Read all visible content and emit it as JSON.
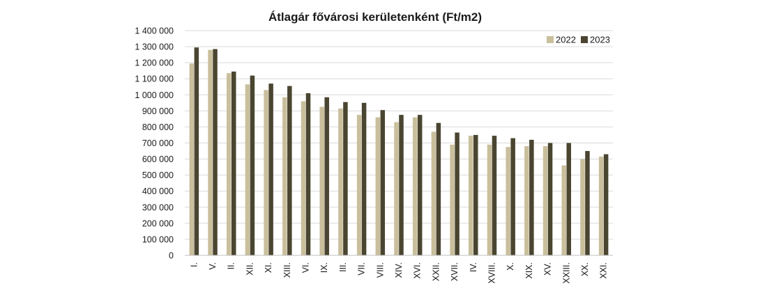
{
  "chart_data": {
    "type": "bar",
    "title": "Átlagár fővárosi kerületenként (Ft/m2)",
    "xlabel": "",
    "ylabel": "",
    "ylim": [
      0,
      1400000
    ],
    "yticks": [
      "0",
      "100 000",
      "200 000",
      "300 000",
      "400 000",
      "500 000",
      "600 000",
      "700 000",
      "800 000",
      "900 000",
      "1 000 000",
      "1 100 000",
      "1 200 000",
      "1 300 000",
      "1 400 000"
    ],
    "ytick_values": [
      0,
      100000,
      200000,
      300000,
      400000,
      500000,
      600000,
      700000,
      800000,
      900000,
      1000000,
      1100000,
      1200000,
      1300000,
      1400000
    ],
    "grid": true,
    "legend_position": "top-right",
    "categories": [
      "I.",
      "V.",
      "II.",
      "XII.",
      "XI.",
      "XIII.",
      "VI.",
      "IX.",
      "III.",
      "VII.",
      "VIII.",
      "XIV.",
      "XVI.",
      "XXII.",
      "XVII.",
      "IV.",
      "XVIII.",
      "X.",
      "XIX.",
      "XV.",
      "XXIII.",
      "XX.",
      "XXI."
    ],
    "series": [
      {
        "name": "2022",
        "color": "#c9bf9c",
        "values": [
          1195000,
          1280000,
          1135000,
          1065000,
          1030000,
          985000,
          960000,
          925000,
          915000,
          875000,
          860000,
          830000,
          860000,
          770000,
          690000,
          745000,
          690000,
          675000,
          680000,
          680000,
          560000,
          600000,
          615000
        ]
      },
      {
        "name": "2023",
        "color": "#4a4530",
        "values": [
          1295000,
          1285000,
          1145000,
          1120000,
          1070000,
          1055000,
          1010000,
          985000,
          955000,
          950000,
          905000,
          875000,
          875000,
          825000,
          765000,
          750000,
          745000,
          730000,
          720000,
          700000,
          700000,
          650000,
          630000
        ]
      }
    ]
  }
}
